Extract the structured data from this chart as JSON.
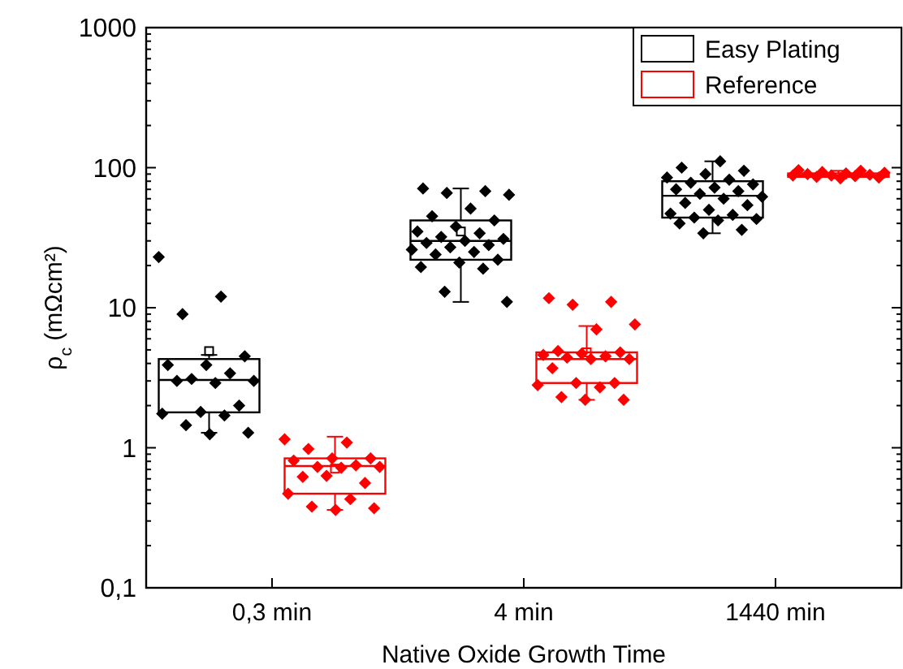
{
  "chart_data": {
    "type": "box",
    "xlabel": "Native Oxide Growth Time",
    "ylabel": "ρ$_{c}$ (mΩcm²)",
    "categories": [
      "0,3 min",
      "4 min",
      "1440 min"
    ],
    "log": "y",
    "ylim": [
      0.1,
      1000
    ],
    "yticks": [
      {
        "value": 0.1,
        "label": "0,1"
      },
      1,
      10,
      100,
      1000
    ],
    "legend": "top right",
    "grid": false,
    "series": [
      {
        "name": "Easy Plating",
        "color": "#000000",
        "boxes": [
          {
            "low": 1.28,
            "q1": 1.79,
            "median": 3.05,
            "q3": 4.3,
            "high": 4.6,
            "mean": 4.9
          },
          {
            "low": 11,
            "q1": 22,
            "median": 30,
            "q3": 42,
            "high": 71,
            "mean": 35
          },
          {
            "low": 34,
            "q1": 44,
            "median": 63,
            "q3": 80,
            "high": 111
          }
        ]
      },
      {
        "name": "Reference",
        "color": "#ff0000",
        "boxes": [
          {
            "low": 0.36,
            "q1": 0.47,
            "median": 0.74,
            "q3": 0.84,
            "high": 1.2,
            "mean": 0.71
          },
          {
            "low": 2.2,
            "q1": 2.9,
            "median": 4.3,
            "q3": 4.8,
            "high": 7.4,
            "mean": 4.8
          },
          {
            "low": 84,
            "q1": 86,
            "median": 88,
            "q3": 91,
            "high": 95
          }
        ]
      },
      {
        "type": "scatter",
        "color": "#000000",
        "marker": "diamond",
        "x": [
          "0,3 min",
          "0,3 min",
          "0,3 min",
          "0,3 min",
          "0,3 min",
          "0,3 min",
          "0,3 min",
          "0,3 min",
          "0,3 min",
          "0,3 min",
          "0,3 min",
          "0,3 min",
          "0,3 min",
          "0,3 min",
          "0,3 min",
          "0,3 min",
          "0,3 min",
          "0,3 min",
          "4 min",
          "4 min",
          "4 min",
          "4 min",
          "4 min",
          "4 min",
          "4 min",
          "4 min",
          "4 min",
          "4 min",
          "4 min",
          "4 min",
          "4 min",
          "4 min",
          "4 min",
          "4 min",
          "4 min",
          "4 min",
          "4 min",
          "4 min",
          "4 min",
          "4 min",
          "4 min",
          "4 min",
          "4 min",
          "1440 min",
          "1440 min",
          "1440 min",
          "1440 min",
          "1440 min",
          "1440 min",
          "1440 min",
          "1440 min",
          "1440 min",
          "1440 min",
          "1440 min",
          "1440 min",
          "1440 min",
          "1440 min",
          "1440 min",
          "1440 min",
          "1440 min",
          "1440 min",
          "1440 min",
          "1440 min",
          "1440 min",
          "1440 min",
          "1440 min",
          "1440 min",
          "1440 min"
        ],
        "values": [
          23,
          12,
          9,
          4.5,
          3.9,
          3.9,
          3.4,
          3.1,
          3.0,
          2.9,
          3.0,
          2.0,
          1.8,
          1.75,
          1.7,
          1.45,
          1.28,
          1.25,
          71,
          68,
          66,
          64,
          51,
          45,
          42,
          38,
          35,
          34,
          32,
          31,
          30,
          29,
          28,
          27,
          26,
          25,
          24,
          22,
          21,
          19.5,
          19,
          13,
          11,
          111,
          100,
          95,
          90,
          85,
          82,
          78,
          76,
          72,
          70,
          68,
          65,
          62,
          60,
          56,
          54,
          50,
          47,
          46,
          44,
          43,
          42,
          40,
          36,
          34
        ]
      },
      {
        "type": "scatter",
        "color": "#ff0000",
        "marker": "diamond",
        "x": [
          "0,3 min",
          "0,3 min",
          "0,3 min",
          "0,3 min",
          "0,3 min",
          "0,3 min",
          "0,3 min",
          "0,3 min",
          "0,3 min",
          "0,3 min",
          "0,3 min",
          "0,3 min",
          "0,3 min",
          "0,3 min",
          "0,3 min",
          "0,3 min",
          "0,3 min",
          "0,3 min",
          "4 min",
          "4 min",
          "4 min",
          "4 min",
          "4 min",
          "4 min",
          "4 min",
          "4 min",
          "4 min",
          "4 min",
          "4 min",
          "4 min",
          "4 min",
          "4 min",
          "4 min",
          "4 min",
          "4 min",
          "4 min",
          "4 min",
          "4 min",
          "4 min",
          "1440 min",
          "1440 min",
          "1440 min",
          "1440 min",
          "1440 min",
          "1440 min",
          "1440 min",
          "1440 min",
          "1440 min",
          "1440 min",
          "1440 min",
          "1440 min",
          "1440 min"
        ],
        "values": [
          1.15,
          1.09,
          0.98,
          0.84,
          0.84,
          0.81,
          0.75,
          0.73,
          0.73,
          0.72,
          0.62,
          0.56,
          0.63,
          0.47,
          0.43,
          0.38,
          0.37,
          0.36,
          11.7,
          11,
          10.5,
          7.6,
          7,
          4.9,
          4.8,
          4.7,
          4.6,
          4.5,
          4.4,
          4.3,
          4.3,
          3.7,
          2.9,
          2.9,
          2.8,
          2.7,
          2.3,
          2.2,
          2.2,
          96,
          95,
          93,
          92,
          91,
          90,
          89,
          88,
          88,
          87,
          86,
          85,
          84
        ]
      }
    ]
  }
}
